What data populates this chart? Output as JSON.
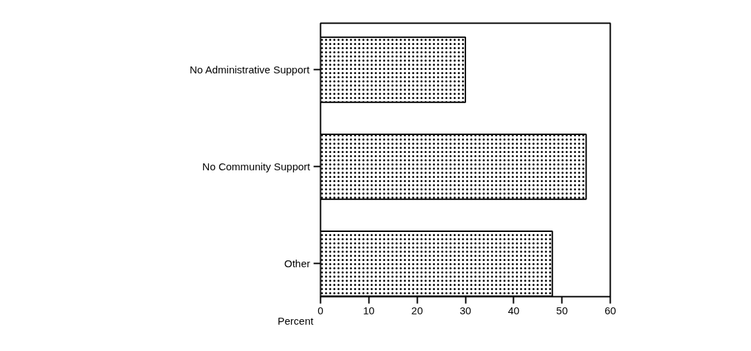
{
  "chart_data": {
    "type": "bar",
    "orientation": "horizontal",
    "xlabel": "Percent",
    "categories": [
      "No Administrative Support",
      "No Community Support",
      "Other"
    ],
    "values": [
      30,
      55,
      48
    ],
    "color": "#ffffff",
    "xlim": [
      0,
      60
    ],
    "xticks": [
      0,
      10,
      20,
      30,
      40,
      50,
      60
    ],
    "grid": false
  }
}
